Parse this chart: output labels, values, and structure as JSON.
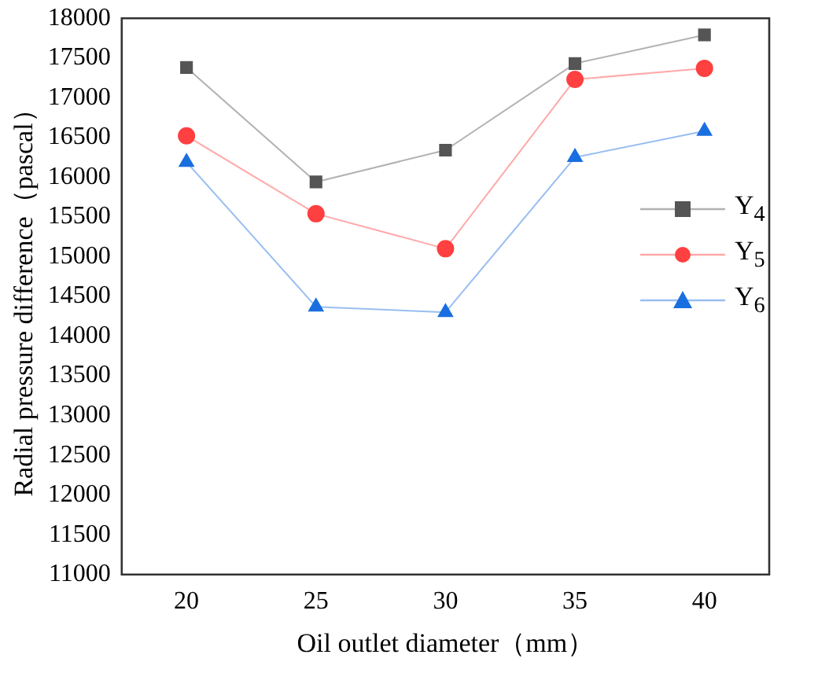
{
  "chart_data": {
    "type": "line",
    "xlabel": "Oil outlet diameter（mm）",
    "ylabel": "Radial pressure difference（pascal）",
    "categories": [
      "20",
      "25",
      "30",
      "35",
      "40"
    ],
    "ylim": [
      11000,
      18000
    ],
    "yticks": [
      11000,
      11500,
      12000,
      12500,
      13000,
      13500,
      14000,
      14500,
      15000,
      15500,
      16000,
      16500,
      17000,
      17500,
      18000
    ],
    "grid": false,
    "legend": "right",
    "line_style": "solid",
    "series": [
      {
        "name": "Y$_{4}$",
        "color": "#555555",
        "marker": "square",
        "values": [
          17380,
          15940,
          16340,
          17430,
          17790
        ]
      },
      {
        "name": "Y$_{5}$",
        "color": "#ff4040",
        "marker": "circle",
        "values": [
          16520,
          15540,
          15100,
          17230,
          17370
        ]
      },
      {
        "name": "Y$_{6}$",
        "color": "#1a6fe0",
        "marker": "triangle",
        "values": [
          16190,
          14370,
          14300,
          16250,
          16580
        ]
      }
    ]
  }
}
